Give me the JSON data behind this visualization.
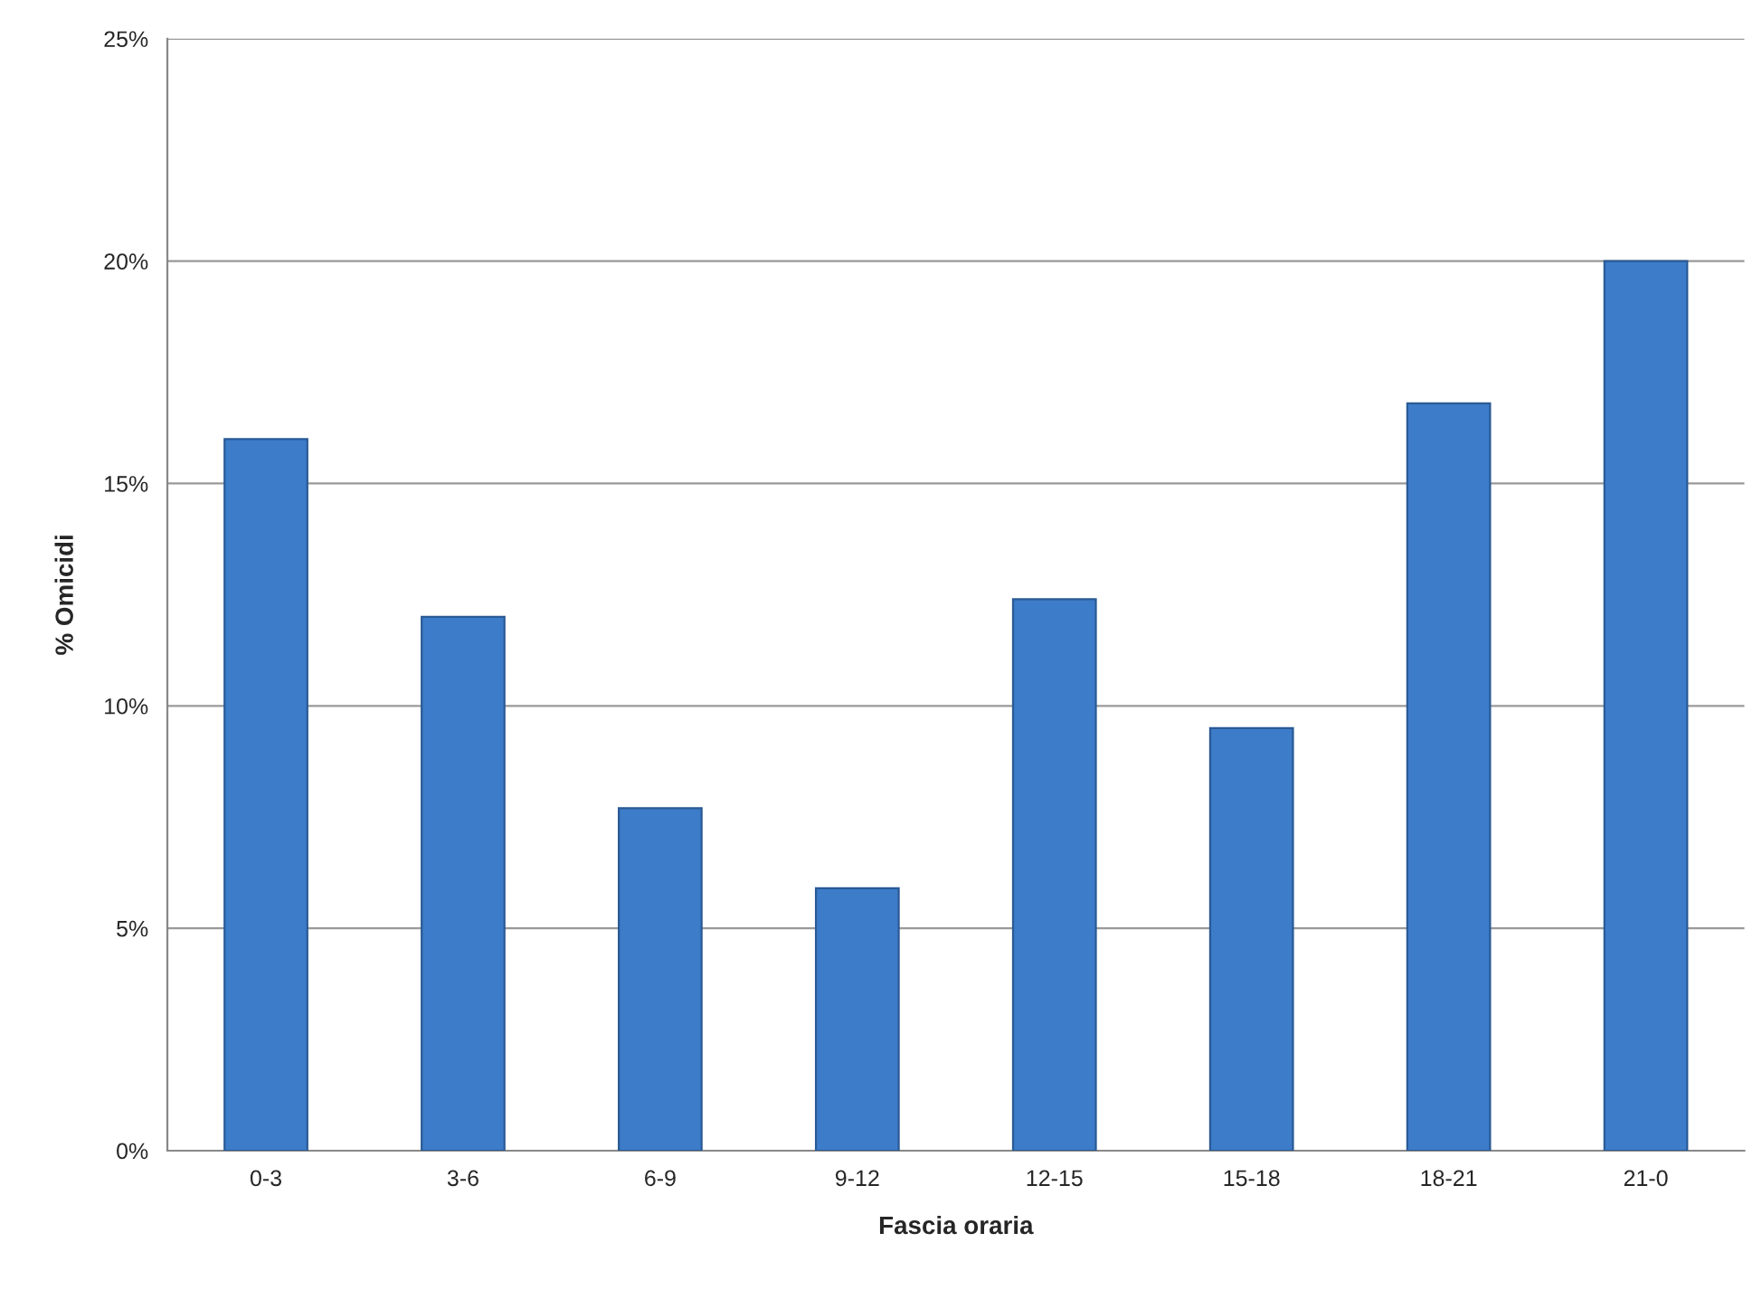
{
  "chart_data": {
    "type": "bar",
    "xlabel": "Fascia oraria",
    "ylabel": "% Omicidi",
    "categories": [
      "0-3",
      "3-6",
      "6-9",
      "9-12",
      "12-15",
      "15-18",
      "18-21",
      "21-0"
    ],
    "values": [
      16.0,
      12.0,
      7.7,
      5.9,
      12.4,
      9.5,
      16.8,
      20.0
    ],
    "color": "#3d7cc9",
    "ylim": [
      0,
      25
    ],
    "yticks": [
      {
        "value": 0,
        "label": "0%"
      },
      {
        "value": 5,
        "label": "5%"
      },
      {
        "value": 10,
        "label": "10%"
      },
      {
        "value": 15,
        "label": "15%"
      },
      {
        "value": 20,
        "label": "20%"
      },
      {
        "value": 25,
        "label": "25%"
      }
    ],
    "grid": "y"
  }
}
